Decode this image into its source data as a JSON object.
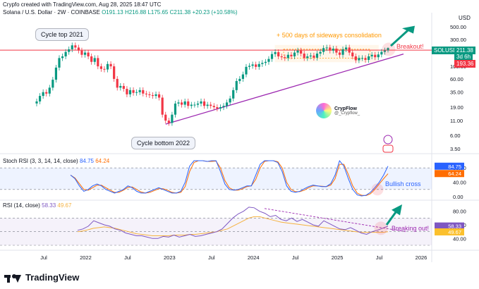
{
  "header": {
    "creator": "Crypfo created with TradingView.com, Aug 28, 2025 18:47 UTC",
    "symbol": "Solana / U.S. Dollar · 2W · COINBASE",
    "ohlc": "O191.13 H216.88 L175.65 C211.38 +20.23 (+10.58%)"
  },
  "colors": {
    "up": "#089981",
    "down": "#f23645",
    "trend": "#9c27b0",
    "box": "#ff9800",
    "arrow": "#089981",
    "resistance": "#f23645",
    "stoch_k": "#2962ff",
    "stoch_d": "#ff6d00",
    "rsi": "#7e57c2",
    "rsi_ma": "#f5b240"
  },
  "annotations": {
    "cycle_top": "Cycle top 2021",
    "cycle_bottom": "Cycle bottom 2022",
    "sideways": "+ 500 days of sideways consolidation",
    "breakout": "Breakout!",
    "bullish_cross": "Bullish cross",
    "breaking_out": "Breaking out!"
  },
  "watermark": {
    "name": "CrypFlow",
    "handle": "@_Crypflow_"
  },
  "price_tags": {
    "symbol": "SOLUSD",
    "last": "211.38",
    "countdown": "3d 6h",
    "resistance": "193.36"
  },
  "footer": {
    "brand": "TradingView"
  },
  "chart_data": [
    {
      "type": "candlestick",
      "pane": "price",
      "currency": "USD",
      "y_scale": "log",
      "ylim": [
        3.5,
        500
      ],
      "y_ticks": [
        "500.00",
        "300.00",
        "180.00",
        "100.00",
        "60.00",
        "35.00",
        "19.00",
        "11.00",
        "6.00",
        "3.50"
      ],
      "x_ticks": [
        "Jul",
        "2022",
        "Jul",
        "2023",
        "Jul",
        "2024",
        "Jul",
        "2025",
        "Jul",
        "2026"
      ],
      "resistance_level": 193.36,
      "last": {
        "open": 191.13,
        "high": 216.88,
        "low": 175.65,
        "close": 211.38,
        "change": 20.23,
        "change_pct": 10.58
      },
      "closes": [
        24,
        30,
        35,
        33,
        42,
        58,
        95,
        140,
        150,
        180,
        200,
        235,
        215,
        190,
        160,
        175,
        150,
        120,
        140,
        100,
        90,
        88,
        110,
        100,
        60,
        42,
        45,
        40,
        32,
        38,
        34,
        35,
        38,
        33,
        32,
        31,
        30,
        32,
        28,
        14,
        11,
        10,
        14,
        22,
        23,
        21,
        24,
        20,
        21,
        21,
        22,
        24,
        20,
        21,
        20,
        19,
        18,
        19,
        20,
        23,
        27,
        38,
        55,
        60,
        72,
        98,
        102,
        108,
        98,
        110,
        115,
        120,
        135,
        165,
        178,
        150,
        145,
        140,
        160,
        150,
        175,
        190,
        168,
        140,
        150,
        155,
        142,
        168,
        180,
        210,
        215,
        190,
        205,
        175,
        160,
        200,
        215,
        175,
        150,
        128,
        140,
        140,
        130,
        150,
        160,
        145,
        162,
        180,
        191,
        211
      ]
    },
    {
      "type": "line",
      "pane": "stoch_rsi",
      "title": "Stoch RSI (3, 3, 14, 14, close)",
      "values_label": [
        "84.75",
        "64.24"
      ],
      "ylim": [
        0,
        100
      ],
      "y_ticks": [
        "80.00",
        "40.00",
        "0.00"
      ],
      "series": [
        {
          "name": "K",
          "values": [
            60,
            50,
            30,
            15,
            20,
            30,
            35,
            30,
            20,
            15,
            10,
            15,
            20,
            30,
            25,
            15,
            10,
            10,
            15,
            20,
            25,
            20,
            15,
            10,
            10,
            15,
            40,
            85,
            100,
            100,
            100,
            98,
            100,
            100,
            70,
            35,
            20,
            18,
            20,
            25,
            30,
            30,
            60,
            90,
            100,
            100,
            100,
            95,
            70,
            30,
            15,
            12,
            15,
            22,
            28,
            32,
            30,
            28,
            28,
            36,
            60,
            100,
            85,
            50,
            20,
            5,
            2,
            4,
            12,
            25,
            40,
            60,
            85
          ]
        },
        {
          "name": "D",
          "values": [
            60,
            52,
            36,
            20,
            18,
            25,
            32,
            32,
            25,
            18,
            12,
            12,
            18,
            26,
            27,
            20,
            13,
            10,
            12,
            17,
            22,
            22,
            18,
            12,
            10,
            12,
            28,
            70,
            95,
            100,
            100,
            98,
            98,
            99,
            80,
            45,
            25,
            18,
            18,
            22,
            28,
            30,
            48,
            80,
            98,
            100,
            100,
            97,
            80,
            40,
            20,
            14,
            14,
            18,
            25,
            30,
            30,
            29,
            28,
            32,
            50,
            90,
            90,
            62,
            30,
            10,
            4,
            3,
            8,
            20,
            35,
            50,
            64
          ]
        }
      ]
    },
    {
      "type": "line",
      "pane": "rsi",
      "title": "RSI (14, close)",
      "values_label": [
        "58.33",
        "49.67"
      ],
      "ylim": [
        30,
        90
      ],
      "y_ticks": [
        "80.00",
        "60.00",
        "40.00"
      ],
      "series": [
        {
          "name": "RSI",
          "values": [
            52,
            54,
            58,
            66,
            63,
            60,
            58,
            54,
            52,
            48,
            46,
            44,
            44,
            42,
            40,
            40,
            43,
            42,
            45,
            42,
            44,
            46,
            43,
            44,
            46,
            48,
            50,
            54,
            62,
            70,
            76,
            80,
            86,
            85,
            80,
            77,
            72,
            74,
            68,
            66,
            70,
            65,
            68,
            64,
            60,
            58,
            66,
            62,
            58,
            54,
            53,
            56,
            52,
            48,
            46,
            50,
            52,
            55,
            58
          ]
        },
        {
          "name": "RSI MA",
          "values": [
            50,
            51,
            53,
            55,
            56,
            57,
            56,
            55,
            53,
            51,
            49,
            47,
            46,
            45,
            44,
            44,
            44,
            44,
            45,
            45,
            45,
            46,
            46,
            47,
            48,
            49,
            50,
            52,
            54,
            58,
            62,
            66,
            70,
            72,
            72,
            70,
            68,
            66,
            64,
            63,
            62,
            61,
            60,
            59,
            58,
            57,
            56,
            55,
            54,
            53,
            52,
            51,
            50,
            49,
            49,
            49,
            49,
            49,
            50
          ]
        }
      ]
    }
  ]
}
